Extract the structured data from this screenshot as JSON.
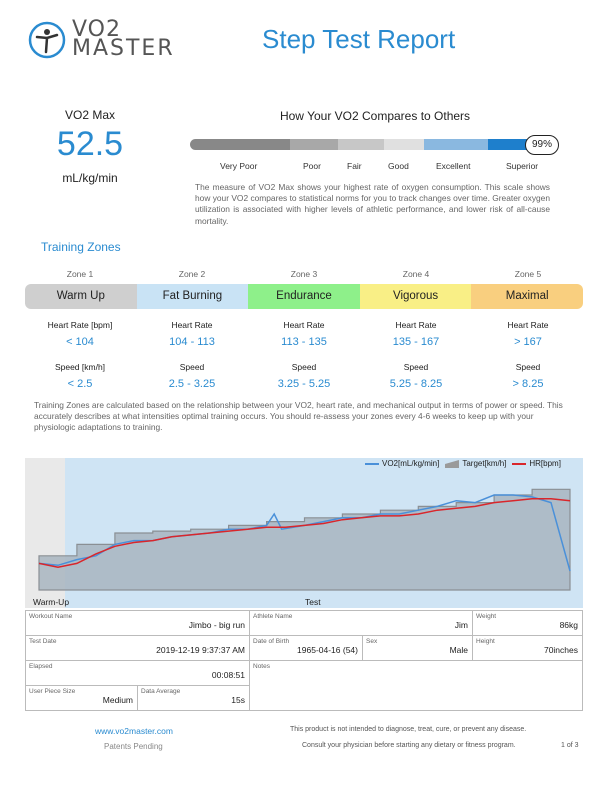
{
  "header": {
    "logo_line1": "VO2",
    "logo_line2": "MASTER",
    "title": "Step Test Report"
  },
  "vo2max": {
    "label": "VO2 Max",
    "value": "52.5",
    "unit": "mL/kg/min"
  },
  "comparison": {
    "title": "How Your VO2 Compares to Others",
    "percentile": "99%",
    "percentile_fraction": 0.99,
    "categories": [
      "Very Poor",
      "Poor",
      "Fair",
      "Good",
      "Excellent",
      "Superior"
    ],
    "colors": {
      "very_poor": "#888888",
      "poor": "#a8a8a8",
      "fair": "#c7c7c7",
      "good": "#e0e0e0",
      "excellent": "#8ab8e0",
      "superior": "#1e7fcc"
    },
    "description": "The measure of VO2 Max shows your highest rate of oxygen consumption. This scale shows how your VO2 compares to statistical norms for you to track changes over time. Greater oxygen utilization is associated with higher levels of athletic performance, and lower risk of all-cause mortality."
  },
  "zones": {
    "section_title": "Training Zones",
    "hr_label_first": "Heart Rate [bpm]",
    "hr_label": "Heart Rate",
    "speed_label_first": "Speed [km/h]",
    "speed_label": "Speed",
    "items": [
      {
        "header": "Zone 1",
        "name": "Warm Up",
        "color": "#cfcfcf",
        "hr": "< 104",
        "speed": "< 2.5"
      },
      {
        "header": "Zone 2",
        "name": "Fat Burning",
        "color": "#c9e3f5",
        "hr": "104 - 113",
        "speed": "2.5 - 3.25"
      },
      {
        "header": "Zone 3",
        "name": "Endurance",
        "color": "#8ef08a",
        "hr": "113 - 135",
        "speed": "3.25 - 5.25"
      },
      {
        "header": "Zone 4",
        "name": "Vigorous",
        "color": "#f9ef86",
        "hr": "135 - 167",
        "speed": "5.25 - 8.25"
      },
      {
        "header": "Zone 5",
        "name": "Maximal",
        "color": "#f9cf7f",
        "hr": "> 167",
        "speed": "> 8.25"
      }
    ],
    "note": "Training Zones are calculated based on the relationship between your VO2, heart rate, and mechanical output in terms of power or speed. This accurately describes at what intensities optimal training occurs. You should re-assess your zones every 4-6 weeks to keep up with your physiologic adaptations to training."
  },
  "chart_data": {
    "type": "line",
    "legend": [
      "VO2[mL/kg/min]",
      "Target[km/h]",
      "HR[bpm]"
    ],
    "phases": [
      "Warm-Up",
      "Test"
    ],
    "colors": {
      "vo2": "#4a90d9",
      "target": "#9a9a9a",
      "hr": "#d9262b",
      "test_bg": "#cfe4f4",
      "warmup_bg": "#e9e9e9"
    },
    "series_target": [
      [
        0,
        34
      ],
      [
        1,
        34
      ],
      [
        1,
        37
      ],
      [
        2,
        37
      ],
      [
        2,
        40
      ],
      [
        3,
        40
      ],
      [
        3,
        40.5
      ],
      [
        4,
        40.5
      ],
      [
        4,
        41
      ],
      [
        5,
        41
      ],
      [
        5,
        42
      ],
      [
        6,
        42
      ],
      [
        6,
        43
      ],
      [
        7,
        43
      ],
      [
        7,
        44
      ],
      [
        8,
        44
      ],
      [
        8,
        45
      ],
      [
        9,
        45
      ],
      [
        9,
        46
      ],
      [
        10,
        46
      ],
      [
        10,
        47
      ],
      [
        11,
        47
      ],
      [
        11,
        48
      ],
      [
        12,
        48
      ],
      [
        12,
        50
      ],
      [
        13,
        50
      ],
      [
        13,
        51.5
      ],
      [
        14,
        51.5
      ]
    ],
    "series_vo2": [
      [
        0,
        32
      ],
      [
        0.5,
        31.5
      ],
      [
        1,
        33
      ],
      [
        1.5,
        34
      ],
      [
        2,
        37
      ],
      [
        2.5,
        38
      ],
      [
        3,
        38
      ],
      [
        3.5,
        39
      ],
      [
        4,
        39.5
      ],
      [
        4.5,
        40
      ],
      [
        5,
        41
      ],
      [
        5.5,
        41
      ],
      [
        6,
        42
      ],
      [
        6.2,
        45
      ],
      [
        6.4,
        41
      ],
      [
        7,
        42
      ],
      [
        7.5,
        43
      ],
      [
        8,
        44
      ],
      [
        8.5,
        44
      ],
      [
        9,
        45
      ],
      [
        9.5,
        45
      ],
      [
        10,
        46
      ],
      [
        10.5,
        47
      ],
      [
        11,
        48.5
      ],
      [
        11.5,
        48
      ],
      [
        12,
        50
      ],
      [
        12.5,
        50
      ],
      [
        13,
        49.5
      ],
      [
        13.5,
        48
      ],
      [
        14,
        30
      ]
    ],
    "series_hr": [
      [
        0,
        32
      ],
      [
        0.5,
        31
      ],
      [
        1,
        32
      ],
      [
        1.5,
        34.5
      ],
      [
        2,
        36.5
      ],
      [
        2.5,
        37.5
      ],
      [
        3,
        38
      ],
      [
        3.5,
        39
      ],
      [
        4,
        39.5
      ],
      [
        4.5,
        40
      ],
      [
        5,
        40.5
      ],
      [
        5.5,
        41
      ],
      [
        6,
        41.5
      ],
      [
        6.5,
        41.5
      ],
      [
        7,
        42
      ],
      [
        7.5,
        42.5
      ],
      [
        8,
        43.5
      ],
      [
        8.5,
        44
      ],
      [
        9,
        44.5
      ],
      [
        9.5,
        44.5
      ],
      [
        10,
        45
      ],
      [
        10.5,
        46
      ],
      [
        11,
        46.5
      ],
      [
        11.5,
        47
      ],
      [
        12,
        48
      ],
      [
        12.5,
        48.5
      ],
      [
        13,
        49
      ],
      [
        13.5,
        49
      ],
      [
        14,
        48.5
      ]
    ]
  },
  "info": {
    "workout_label": "Workout Name",
    "workout": "Jimbo - big run",
    "athlete_label": "Athlete Name",
    "athlete": "Jim",
    "weight_label": "Weight",
    "weight": "86kg",
    "date_label": "Test Date",
    "date": "2019-12-19 9:37:37 AM",
    "dob_label": "Date of Birth",
    "dob": "1965-04-16 (54)",
    "sex_label": "Sex",
    "sex": "Male",
    "height_label": "Height",
    "height": "70inches",
    "elapsed_label": "Elapsed",
    "elapsed": "00:08:51",
    "notes_label": "Notes",
    "piece_label": "User Piece Size",
    "piece": "Medium",
    "avg_label": "Data Average",
    "avg": "15s"
  },
  "footer": {
    "website": "www.vo2master.com",
    "patents": "Patents Pending",
    "disclaimer1": "This product is not intended to diagnose, treat, cure, or prevent any disease.",
    "disclaimer2": "Consult your physician before starting any dietary or fitness program.",
    "page": "1 of 3"
  }
}
